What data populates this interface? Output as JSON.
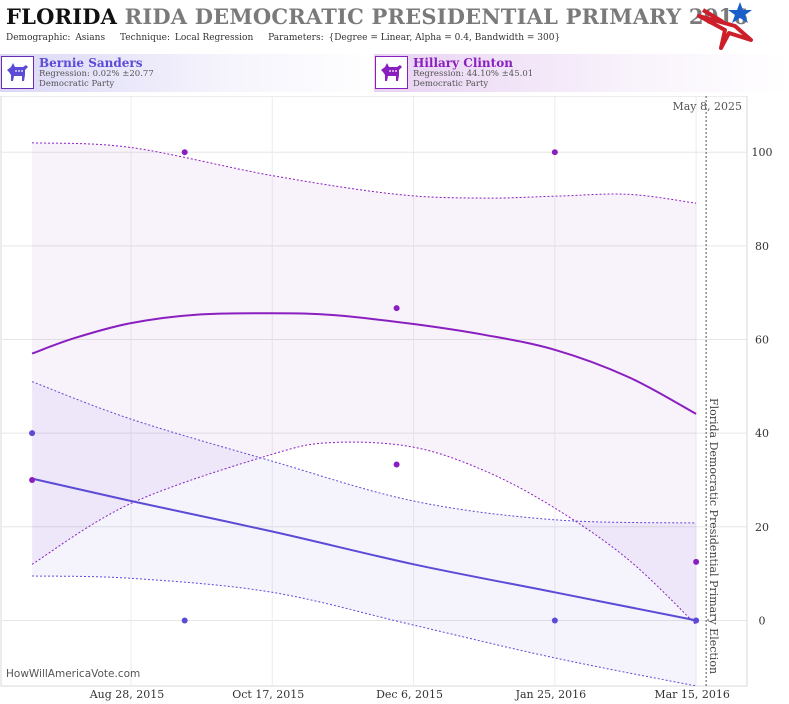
{
  "title": {
    "state": "FLORIDA",
    "rest": "RIDA DEMOCRATIC PRESIDENTIAL PRIMARY 2016"
  },
  "subtitle": {
    "demographic_label": "Demographic:",
    "demographic": "Asians",
    "technique_label": "Technique:",
    "technique": "Local Regression",
    "parameters_label": "Parameters:",
    "parameters": "{Degree = Linear, Alpha = 0.4, Bandwidth = 300}"
  },
  "candidates": [
    {
      "name": "Bernie Sanders",
      "regression": "Regression: 0.02% ±20.77",
      "party": "Democratic Party",
      "color": "#5b4bd6",
      "icon": "donkey-icon"
    },
    {
      "name": "Hillary Clinton",
      "regression": "Regression: 44.10% ±45.01",
      "party": "Democratic Party",
      "color": "#8a1fbf",
      "icon": "donkey-icon"
    }
  ],
  "date_stamp": "May 8, 2025",
  "watermark": "HowWillAmericaVote.com",
  "election_label": "Florida Democratic Presidential Primary Election",
  "chart_data": {
    "type": "line",
    "x_type": "date",
    "xlim": [
      "2015-07-13",
      "2016-04-02"
    ],
    "ylim": [
      -14,
      112
    ],
    "x_ticks": [
      {
        "date": "2015-08-28",
        "label": "Aug 28, 2015"
      },
      {
        "date": "2015-10-17",
        "label": "Oct 17, 2015"
      },
      {
        "date": "2015-12-06",
        "label": "Dec 6, 2015"
      },
      {
        "date": "2016-01-25",
        "label": "Jan 25, 2016"
      },
      {
        "date": "2016-03-15",
        "label": "Mar 15, 2016"
      }
    ],
    "y_ticks": [
      0,
      20,
      40,
      60,
      80,
      100
    ],
    "election_date": "2016-03-15",
    "series": [
      {
        "name": "Hillary Clinton",
        "color": "#8a1fbf",
        "points": [
          {
            "date": "2015-07-24",
            "value": 30
          },
          {
            "date": "2015-09-16",
            "value": 100
          },
          {
            "date": "2015-11-30",
            "value": 66.7
          },
          {
            "date": "2015-11-30",
            "value": 33.3
          },
          {
            "date": "2016-01-25",
            "value": 100
          },
          {
            "date": "2016-03-15",
            "value": 12.5
          }
        ],
        "fit": [
          {
            "date": "2015-07-24",
            "value": 57
          },
          {
            "date": "2015-08-08",
            "value": 60.3
          },
          {
            "date": "2015-08-28",
            "value": 63.5
          },
          {
            "date": "2015-09-20",
            "value": 65.3
          },
          {
            "date": "2015-10-17",
            "value": 65.6
          },
          {
            "date": "2015-11-08",
            "value": 65.2
          },
          {
            "date": "2015-12-06",
            "value": 63.3
          },
          {
            "date": "2015-12-31",
            "value": 61
          },
          {
            "date": "2016-01-25",
            "value": 57.8
          },
          {
            "date": "2016-02-20",
            "value": 52
          },
          {
            "date": "2016-03-15",
            "value": 44.1
          }
        ],
        "upper": [
          {
            "date": "2015-07-24",
            "value": 102
          },
          {
            "date": "2015-08-28",
            "value": 101
          },
          {
            "date": "2015-10-17",
            "value": 95
          },
          {
            "date": "2015-11-30",
            "value": 91
          },
          {
            "date": "2015-12-31",
            "value": 90.2
          },
          {
            "date": "2016-01-25",
            "value": 90.6
          },
          {
            "date": "2016-02-20",
            "value": 91
          },
          {
            "date": "2016-03-15",
            "value": 89.1
          }
        ],
        "lower": [
          {
            "date": "2015-07-24",
            "value": 12
          },
          {
            "date": "2015-08-28",
            "value": 25
          },
          {
            "date": "2015-10-17",
            "value": 35.5
          },
          {
            "date": "2015-11-08",
            "value": 38
          },
          {
            "date": "2015-12-06",
            "value": 37
          },
          {
            "date": "2015-12-31",
            "value": 32
          },
          {
            "date": "2016-01-25",
            "value": 24
          },
          {
            "date": "2016-02-20",
            "value": 13
          },
          {
            "date": "2016-03-15",
            "value": -0.9
          }
        ]
      },
      {
        "name": "Bernie Sanders",
        "color": "#5b4bd6",
        "points": [
          {
            "date": "2015-07-24",
            "value": 40
          },
          {
            "date": "2015-09-16",
            "value": 0
          },
          {
            "date": "2016-01-25",
            "value": 0
          },
          {
            "date": "2016-03-15",
            "value": 0
          }
        ],
        "fit": [
          {
            "date": "2015-07-24",
            "value": 30.3
          },
          {
            "date": "2015-08-28",
            "value": 25.5
          },
          {
            "date": "2015-10-17",
            "value": 19
          },
          {
            "date": "2015-12-06",
            "value": 12
          },
          {
            "date": "2016-01-25",
            "value": 6
          },
          {
            "date": "2016-03-15",
            "value": 0.02
          }
        ],
        "upper": [
          {
            "date": "2015-07-24",
            "value": 51
          },
          {
            "date": "2015-08-28",
            "value": 43
          },
          {
            "date": "2015-10-17",
            "value": 34
          },
          {
            "date": "2015-12-06",
            "value": 25.5
          },
          {
            "date": "2016-01-25",
            "value": 21.5
          },
          {
            "date": "2016-03-15",
            "value": 20.8
          }
        ],
        "lower": [
          {
            "date": "2015-07-24",
            "value": 9.5
          },
          {
            "date": "2015-08-28",
            "value": 9
          },
          {
            "date": "2015-10-17",
            "value": 6
          },
          {
            "date": "2015-12-06",
            "value": -1
          },
          {
            "date": "2016-01-25",
            "value": -8
          },
          {
            "date": "2016-03-15",
            "value": -14
          }
        ]
      }
    ]
  }
}
